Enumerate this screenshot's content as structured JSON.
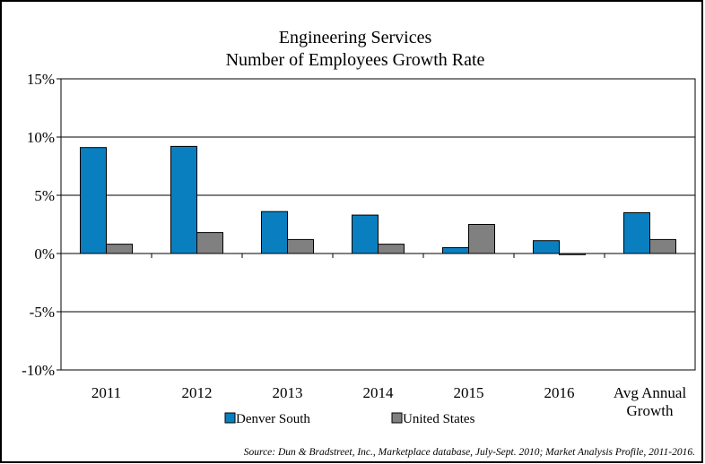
{
  "chart_data": {
    "type": "bar",
    "title": "Engineering Services",
    "subtitle": "Number of Employees Growth Rate",
    "categories": [
      "2011",
      "2012",
      "2013",
      "2014",
      "2015",
      "2016",
      "Avg Annual Growth"
    ],
    "category_lines": [
      [
        "2011"
      ],
      [
        "2012"
      ],
      [
        "2013"
      ],
      [
        "2014"
      ],
      [
        "2015"
      ],
      [
        "2016"
      ],
      [
        "Avg Annual",
        "Growth"
      ]
    ],
    "series": [
      {
        "name": "Denver South",
        "color": "#0a7fbf",
        "values": [
          9.1,
          9.2,
          3.6,
          3.3,
          0.5,
          1.1,
          3.5
        ]
      },
      {
        "name": "United States",
        "color": "#808080",
        "values": [
          0.8,
          1.8,
          1.2,
          0.8,
          2.5,
          -0.1,
          1.2
        ]
      }
    ],
    "ylim": [
      -10,
      15
    ],
    "yticks": [
      -10,
      -5,
      0,
      5,
      10,
      15
    ],
    "ytick_labels": [
      "-10%",
      "-5%",
      "0%",
      "5%",
      "10%",
      "15%"
    ],
    "xlabel": "",
    "ylabel": "",
    "grid": true,
    "legend": "bottom-center",
    "source": "Source: Dun & Bradstreet, Inc., Marketplace database, July-Sept. 2010; Market Analysis Profile, 2011-2016."
  }
}
